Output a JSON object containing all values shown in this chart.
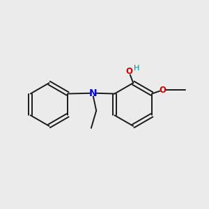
{
  "background_color": "#ebebeb",
  "bond_color": "#1a1a1a",
  "N_color": "#0000ee",
  "O_color": "#cc0000",
  "OH_color": "#008b8b",
  "font_size": 8.5,
  "line_width": 1.4,
  "figsize": [
    3.0,
    3.0
  ],
  "dpi": 100,
  "xlim": [
    0,
    10
  ],
  "ylim": [
    0,
    10
  ]
}
